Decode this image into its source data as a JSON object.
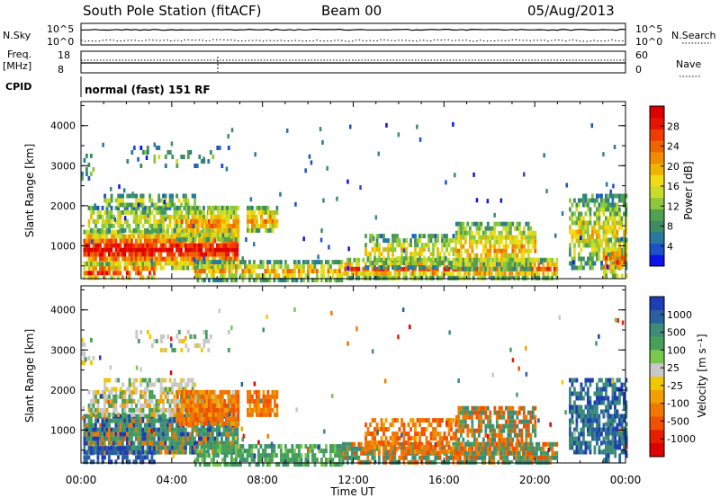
{
  "header": {
    "title": "South Pole Station (fitACF)",
    "beam": "Beam 00",
    "date": "05/Aug/2013"
  },
  "panels": {
    "nsky": {
      "left_label": "N.Sky",
      "right_label": "N.Search",
      "left_ticks": [
        "10^5",
        "10^0"
      ],
      "right_ticks": [
        "10^5",
        "10^0"
      ]
    },
    "freq": {
      "left_label_1": "Freq.",
      "left_label_2": "[MHz]",
      "right_label": "Nave",
      "left_ticks": [
        "18",
        "8"
      ],
      "right_ticks": [
        "60",
        "0"
      ]
    },
    "cpid": {
      "label": "CPID",
      "text": "normal (fast) 151 RF"
    }
  },
  "chart_data": [
    {
      "type": "heatmap",
      "name": "power",
      "ylabel": "Slant Range [km]",
      "xlabel": "",
      "yticks": [
        1000,
        2000,
        3000,
        4000
      ],
      "ylim": [
        180,
        4600
      ],
      "xlim": [
        "00:00",
        "24:00"
      ],
      "colorbar": {
        "label": "Power [dB]",
        "ticks": [
          "4",
          "8",
          "12",
          "16",
          "20",
          "24",
          "28"
        ],
        "colors": [
          "#0a14e6",
          "#1e50c8",
          "#2878a0",
          "#3c8c64",
          "#50a050",
          "#8cc83c",
          "#c8dc28",
          "#f0dc14",
          "#f0b400",
          "#f08c00",
          "#f06400",
          "#f03c00",
          "#e61400",
          "#dc0000"
        ]
      }
    },
    {
      "type": "heatmap",
      "name": "velocity",
      "ylabel": "Slant Range [km]",
      "xlabel": "Time UT",
      "yticks": [
        1000,
        2000,
        3000,
        4000
      ],
      "ylim": [
        180,
        4600
      ],
      "xticks": [
        "00:00",
        "04:00",
        "08:00",
        "12:00",
        "16:00",
        "20:00",
        "00:00"
      ],
      "xlim": [
        "00:00",
        "24:00"
      ],
      "colorbar": {
        "label": "Velocity [m s⁻¹]",
        "ticks": [
          "1000",
          "500",
          "100",
          "25",
          "-25",
          "-100",
          "-500",
          "-1000"
        ],
        "colors": [
          "#1e3cb4",
          "#2860a0",
          "#3c8c78",
          "#46a05a",
          "#78c850",
          "#c8c8c8",
          "#f0c800",
          "#f0a000",
          "#f07800",
          "#f05000",
          "#e61e00",
          "#dc0000"
        ]
      }
    }
  ]
}
